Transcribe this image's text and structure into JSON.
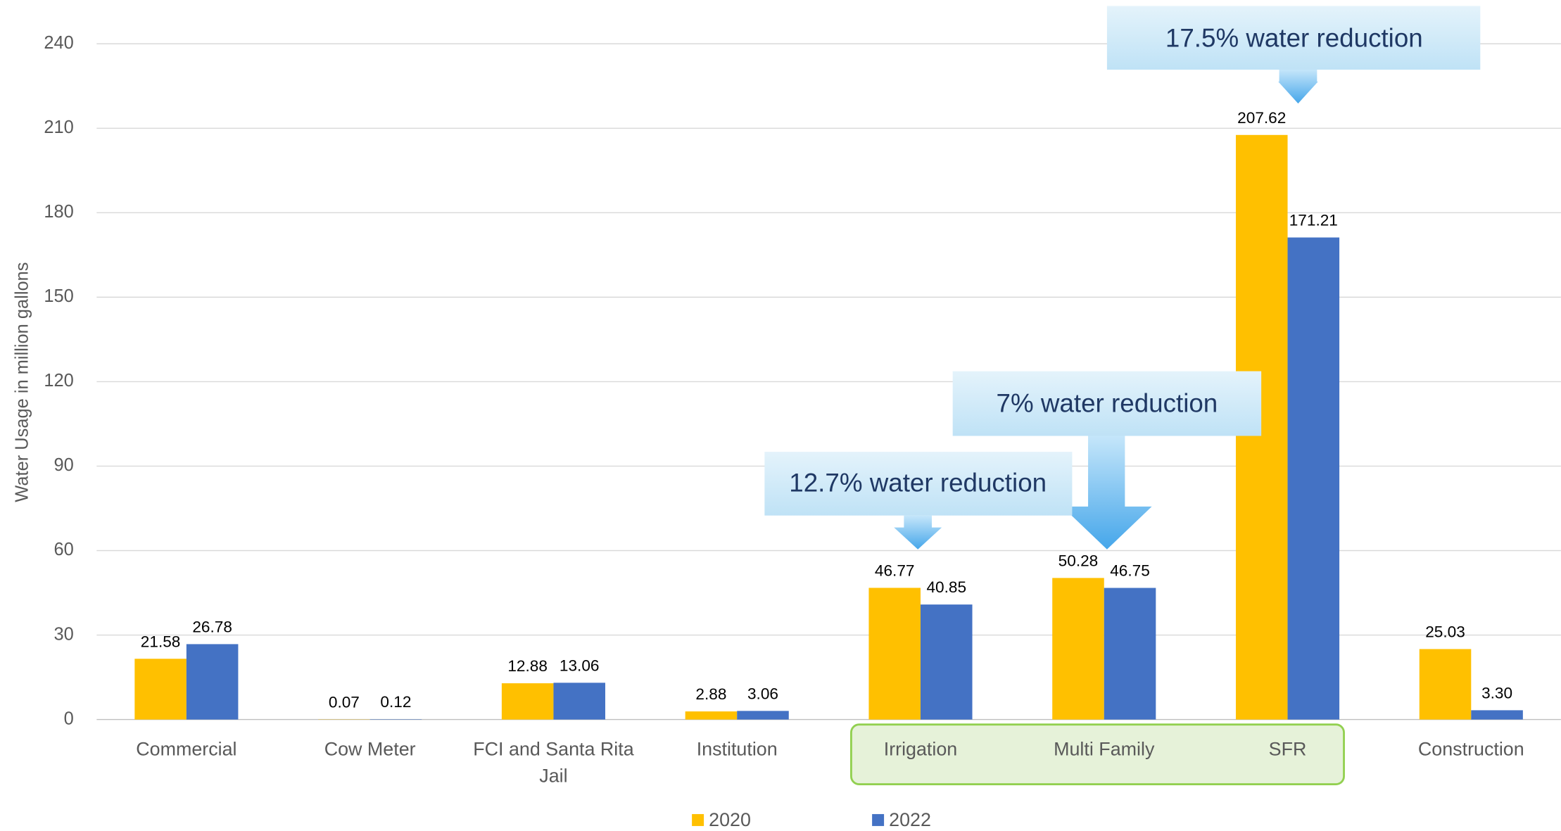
{
  "chart_data": {
    "type": "bar",
    "y_label": "Water Usage in million gallons",
    "categories": [
      "Commercial",
      "Cow Meter",
      "FCI and Santa Rita Jail",
      "Institution",
      "Irrigation",
      "Multi Family",
      "SFR",
      "Construction"
    ],
    "series": [
      {
        "name": "2020",
        "color": "#FFC000",
        "values": [
          21.58,
          0.07,
          12.88,
          2.88,
          46.77,
          50.28,
          207.62,
          25.03
        ],
        "value_labels": [
          "21.58",
          "0.07",
          "12.88",
          "2.88",
          "46.77",
          "50.28",
          "207.62",
          "25.03"
        ]
      },
      {
        "name": "2022",
        "color": "#4472C4",
        "values": [
          26.78,
          0.12,
          13.06,
          3.06,
          40.85,
          46.75,
          171.21,
          3.3
        ],
        "value_labels": [
          "26.78",
          "0.12",
          "13.06",
          "3.06",
          "40.85",
          "46.75",
          "171.21",
          "3.30"
        ]
      }
    ],
    "ylim": [
      0,
      240
    ],
    "yticks": [
      0,
      30,
      60,
      90,
      120,
      150,
      180,
      210,
      240
    ],
    "grid": true,
    "annotations": [
      "17.5% water reduction",
      "7% water reduction",
      "12.7% water reduction"
    ]
  }
}
